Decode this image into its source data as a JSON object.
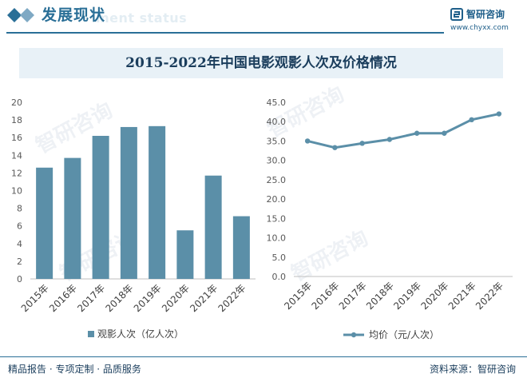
{
  "header": {
    "section_title": "发展现状",
    "section_subtitle": "ment status",
    "brand_name": "智研咨询",
    "brand_url": "www.chyxx.com"
  },
  "chart_title": "2015-2022年中国电影观影人次及价格情况",
  "chart_data": [
    {
      "type": "bar",
      "categories": [
        "2015年",
        "2016年",
        "2017年",
        "2018年",
        "2019年",
        "2020年",
        "2021年",
        "2022年"
      ],
      "series": [
        {
          "name": "观影人次（亿人次）",
          "values": [
            12.6,
            13.7,
            16.2,
            17.2,
            17.3,
            5.5,
            11.7,
            7.1
          ],
          "color": "#5b8fa8"
        }
      ],
      "ylim": [
        0,
        20
      ],
      "yticks": [
        "0",
        "2",
        "4",
        "6",
        "8",
        "10",
        "12",
        "14",
        "16",
        "18",
        "20"
      ],
      "grid": false,
      "legend": "bottom"
    },
    {
      "type": "line",
      "categories": [
        "2015年",
        "2016年",
        "2017年",
        "2018年",
        "2019年",
        "2020年",
        "2021年",
        "2022年"
      ],
      "series": [
        {
          "name": "均价（元/人次）",
          "values": [
            35.0,
            33.3,
            34.4,
            35.4,
            37.0,
            37.0,
            40.5,
            42.0
          ],
          "color": "#5b8fa8"
        }
      ],
      "ylim": [
        0,
        45
      ],
      "yticks": [
        "0.0",
        "5.0",
        "10.0",
        "15.0",
        "20.0",
        "25.0",
        "30.0",
        "35.0",
        "40.0",
        "45.0"
      ],
      "grid": false,
      "legend": "bottom"
    }
  ],
  "footer": {
    "left": "精品报告 · 专项定制 · 品质服务",
    "right": "资料来源：智研咨询"
  },
  "watermark": "智研咨询",
  "colors": {
    "accent": "#2a6f97",
    "bar": "#5b8fa8",
    "title_band": "#e8f1f7"
  }
}
